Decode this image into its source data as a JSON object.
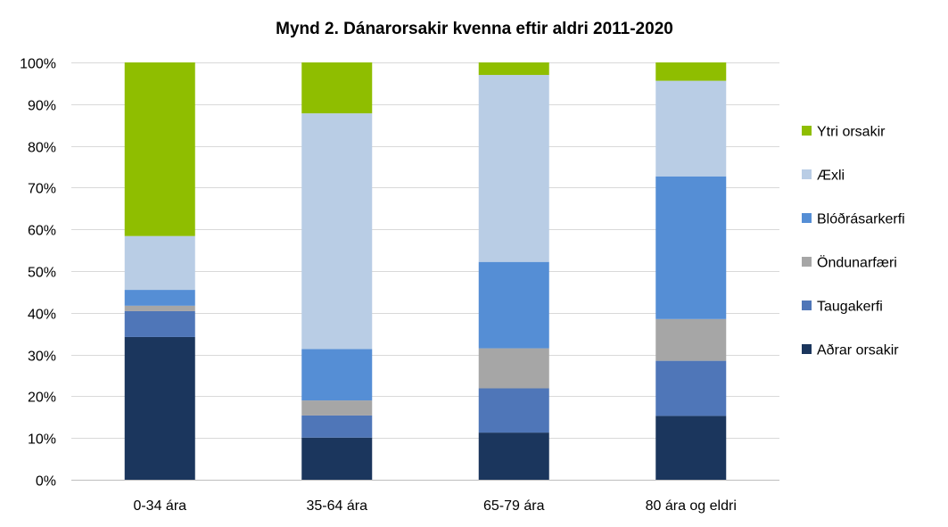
{
  "chart_data": {
    "type": "bar",
    "stacked": true,
    "percent": true,
    "title": "Mynd 2. Dánarorsakir kvenna eftir aldri 2011-2020",
    "xlabel": "",
    "ylabel": "",
    "ylim": [
      0,
      100
    ],
    "yticks": [
      "0%",
      "10%",
      "20%",
      "30%",
      "40%",
      "50%",
      "60%",
      "70%",
      "80%",
      "90%",
      "100%"
    ],
    "categories": [
      "0-34 ára",
      "35-64 ára",
      "65-79 ára",
      "80 ára og eldri"
    ],
    "series": [
      {
        "name": "Aðrar orsakir",
        "color": "#1b365d",
        "values": [
          34.2,
          10.1,
          11.3,
          15.3
        ]
      },
      {
        "name": "Taugakerfi",
        "color": "#4f76b8",
        "values": [
          6.2,
          5.3,
          10.6,
          13.2
        ]
      },
      {
        "name": "Öndunarfæri",
        "color": "#a6a6a6",
        "values": [
          1.3,
          3.6,
          9.6,
          10.0
        ]
      },
      {
        "name": "Blóðrásarkerfi",
        "color": "#558ed5",
        "values": [
          3.8,
          12.3,
          20.7,
          34.2
        ]
      },
      {
        "name": "Æxli",
        "color": "#b9cde5",
        "values": [
          12.9,
          56.5,
          44.8,
          22.9
        ]
      },
      {
        "name": "Ytri orsakir",
        "color": "#8fbe00",
        "values": [
          41.6,
          12.2,
          3.0,
          4.4
        ]
      }
    ],
    "legend_position": "right",
    "grid": true,
    "grid_color": "#d9d9d9"
  }
}
